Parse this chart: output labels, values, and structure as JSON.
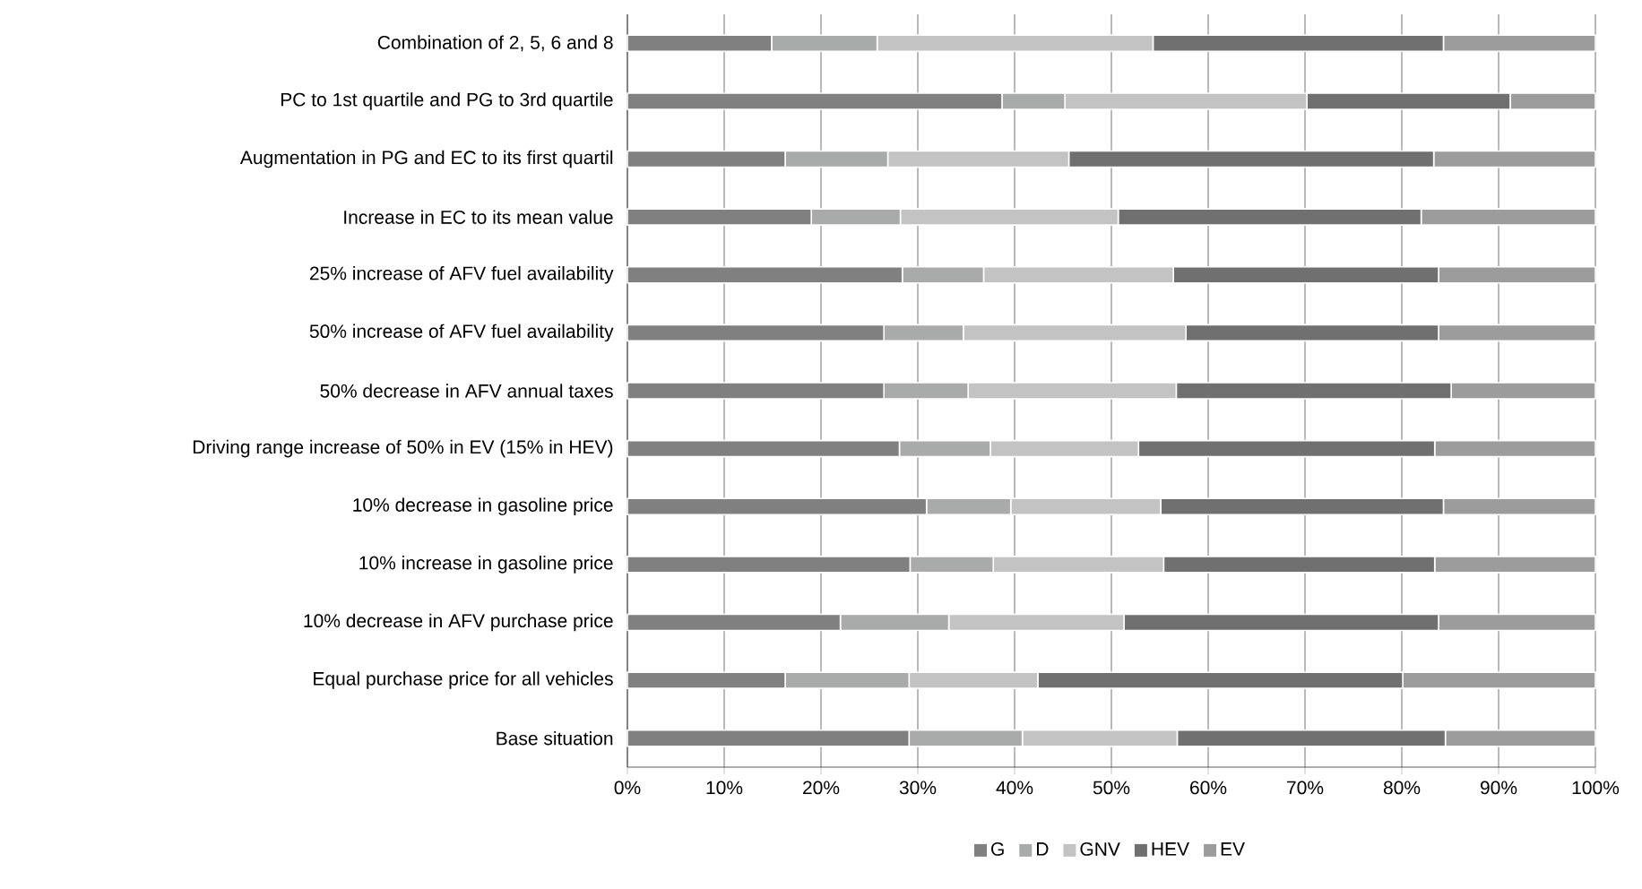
{
  "chart_data": {
    "type": "bar",
    "orientation": "horizontal",
    "stacked": true,
    "categories": [
      "Combination of 2, 5, 6 and 8",
      "PC to 1st quartile and PG to 3rd quartile",
      "Augmentation in PG and EC to its first quartil",
      "Increase in EC to its mean value",
      "25% increase of AFV fuel availability",
      "50% increase of AFV fuel availability",
      "50% decrease in AFV annual taxes",
      "Driving range increase of 50% in EV (15% in HEV)",
      "10% decrease in gasoline price",
      "10% increase in gasoline price",
      "10% decrease in AFV purchase price",
      "Equal purchase price for all vehicles",
      "Base situation"
    ],
    "series": [
      {
        "name": "G",
        "color": "#808080",
        "values": [
          14.9,
          38.7,
          16.3,
          19.0,
          28.4,
          26.5,
          26.5,
          28.1,
          30.9,
          29.2,
          22.0,
          16.3,
          29.1
        ]
      },
      {
        "name": "D",
        "color": "#a9abaa",
        "values": [
          10.9,
          6.5,
          10.6,
          9.2,
          8.4,
          8.2,
          8.7,
          9.4,
          8.7,
          8.6,
          11.2,
          12.8,
          11.7
        ]
      },
      {
        "name": "GNV",
        "color": "#c3c3c3",
        "values": [
          28.5,
          25.0,
          18.7,
          22.5,
          19.6,
          23.0,
          21.5,
          15.3,
          15.5,
          17.6,
          18.1,
          13.3,
          16.0
        ]
      },
      {
        "name": "HEV",
        "color": "#707070",
        "values": [
          30.0,
          21.0,
          37.7,
          31.3,
          27.4,
          26.1,
          28.4,
          30.6,
          29.2,
          28.0,
          32.5,
          37.7,
          27.7
        ]
      },
      {
        "name": "EV",
        "color": "#9c9c9c",
        "values": [
          15.7,
          8.8,
          16.7,
          18.0,
          16.2,
          16.2,
          14.9,
          16.6,
          15.7,
          16.6,
          16.2,
          19.9,
          15.5
        ]
      }
    ],
    "xlim": [
      0,
      100
    ],
    "xticks": [
      {
        "value": 0,
        "label": "0%"
      },
      {
        "value": 10,
        "label": "10%"
      },
      {
        "value": 20,
        "label": "20%"
      },
      {
        "value": 30,
        "label": "30%"
      },
      {
        "value": 40,
        "label": "40%"
      },
      {
        "value": 50,
        "label": "50%"
      },
      {
        "value": 60,
        "label": "60%"
      },
      {
        "value": 70,
        "label": "70%"
      },
      {
        "value": 80,
        "label": "80%"
      },
      {
        "value": 90,
        "label": "90%"
      },
      {
        "value": 100,
        "label": "100%"
      }
    ],
    "grid": "x",
    "legend": "bottom"
  }
}
